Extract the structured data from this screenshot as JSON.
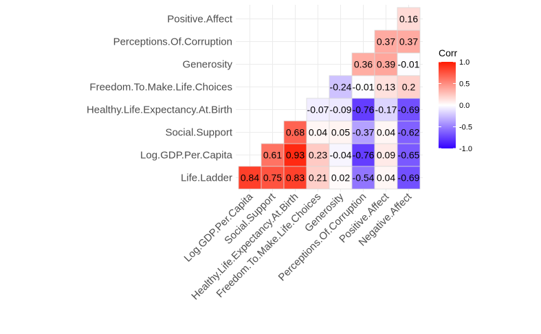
{
  "chart_data": {
    "type": "heatmap",
    "row_labels": [
      "Life.Ladder",
      "Log.GDP.Per.Capita",
      "Social.Support",
      "Healthy.Life.Expectancy.At.Birth",
      "Freedom.To.Make.Life.Choices",
      "Generosity",
      "Perceptions.Of.Corruption",
      "Positive.Affect"
    ],
    "col_labels": [
      "Log.GDP.Per.Capita",
      "Social.Support",
      "Healthy.Life.Expectancy.At.Birth",
      "Freedom.To.Make.Life.Choices",
      "Generosity",
      "Perceptions.Of.Corruption",
      "Positive.Affect",
      "Negative.Affect"
    ],
    "cells": [
      {
        "row": 0,
        "col": 0,
        "value": 0.84
      },
      {
        "row": 0,
        "col": 1,
        "value": 0.75
      },
      {
        "row": 0,
        "col": 2,
        "value": 0.83
      },
      {
        "row": 0,
        "col": 3,
        "value": 0.21
      },
      {
        "row": 0,
        "col": 4,
        "value": 0.02
      },
      {
        "row": 0,
        "col": 5,
        "value": -0.54
      },
      {
        "row": 0,
        "col": 6,
        "value": 0.04
      },
      {
        "row": 0,
        "col": 7,
        "value": -0.69
      },
      {
        "row": 1,
        "col": 1,
        "value": 0.61
      },
      {
        "row": 1,
        "col": 2,
        "value": 0.93
      },
      {
        "row": 1,
        "col": 3,
        "value": 0.23
      },
      {
        "row": 1,
        "col": 4,
        "value": -0.04
      },
      {
        "row": 1,
        "col": 5,
        "value": -0.76
      },
      {
        "row": 1,
        "col": 6,
        "value": 0.09
      },
      {
        "row": 1,
        "col": 7,
        "value": -0.65
      },
      {
        "row": 2,
        "col": 2,
        "value": 0.68
      },
      {
        "row": 2,
        "col": 3,
        "value": 0.04
      },
      {
        "row": 2,
        "col": 4,
        "value": 0.05
      },
      {
        "row": 2,
        "col": 5,
        "value": -0.37
      },
      {
        "row": 2,
        "col": 6,
        "value": 0.04
      },
      {
        "row": 2,
        "col": 7,
        "value": -0.62
      },
      {
        "row": 3,
        "col": 3,
        "value": -0.07
      },
      {
        "row": 3,
        "col": 4,
        "value": -0.09
      },
      {
        "row": 3,
        "col": 5,
        "value": -0.76
      },
      {
        "row": 3,
        "col": 6,
        "value": -0.17
      },
      {
        "row": 3,
        "col": 7,
        "value": -0.69
      },
      {
        "row": 4,
        "col": 4,
        "value": -0.24
      },
      {
        "row": 4,
        "col": 5,
        "value": -0.01
      },
      {
        "row": 4,
        "col": 6,
        "value": 0.13
      },
      {
        "row": 4,
        "col": 7,
        "value": 0.2
      },
      {
        "row": 5,
        "col": 5,
        "value": 0.36
      },
      {
        "row": 5,
        "col": 6,
        "value": 0.39
      },
      {
        "row": 5,
        "col": 7,
        "value": -0.01
      },
      {
        "row": 6,
        "col": 6,
        "value": 0.37
      },
      {
        "row": 6,
        "col": 7,
        "value": 0.37
      },
      {
        "row": 7,
        "col": 7,
        "value": 0.16
      }
    ],
    "cell_text": [
      "0.84",
      "0.75",
      "0.83",
      "0.21",
      "0.02",
      "-0.54",
      "0.04",
      "-0.69",
      "0.61",
      "0.93",
      "0.23",
      "-0.04",
      "-0.76",
      "0.09",
      "-0.65",
      "0.68",
      "0.04",
      "0.05",
      "-0.37",
      "0.04",
      "-0.62",
      "-0.07",
      "-0.09",
      "-0.76",
      "-0.17",
      "-0.69",
      "-0.24",
      "-0.01",
      "0.13",
      "0.2",
      "0.36",
      "0.39",
      "-0.01",
      "0.37",
      "0.37",
      "0.16"
    ],
    "color_scale": {
      "low": "#3300ff",
      "mid": "#ffffff",
      "high": "#ff1a00",
      "limits": [
        -1,
        1
      ]
    },
    "legend": {
      "title": "Corr",
      "placement": "right",
      "tick_values": [
        1,
        0.5,
        0,
        -0.5,
        -1
      ],
      "tick_labels": [
        "1.0",
        "0.5",
        "0.0",
        "-0.5",
        "-1.0"
      ]
    },
    "grid": true
  }
}
